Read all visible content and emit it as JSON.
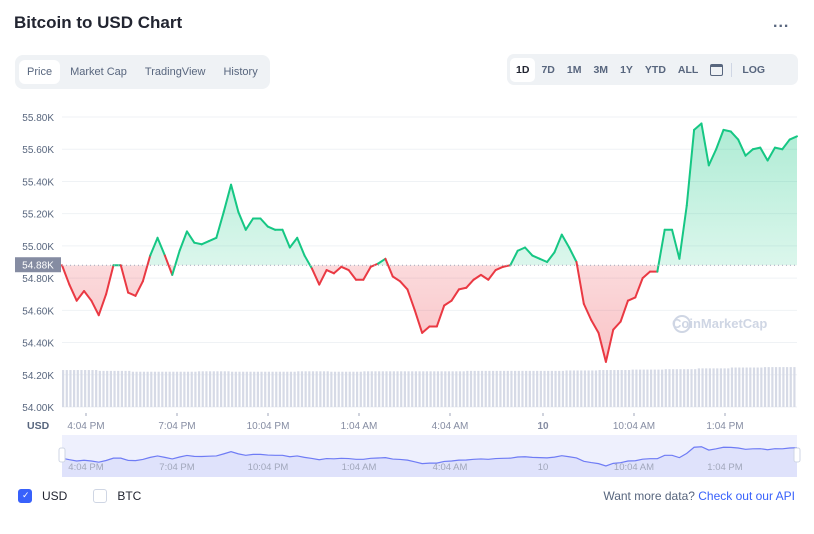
{
  "header": {
    "title": "Bitcoin to USD Chart",
    "more_label": "..."
  },
  "tabs": [
    {
      "label": "Price",
      "active": true
    },
    {
      "label": "Market Cap"
    },
    {
      "label": "TradingView"
    },
    {
      "label": "History"
    }
  ],
  "ranges": [
    {
      "label": "1D",
      "active": true
    },
    {
      "label": "7D"
    },
    {
      "label": "1M"
    },
    {
      "label": "3M"
    },
    {
      "label": "1Y"
    },
    {
      "label": "YTD"
    },
    {
      "label": "ALL"
    }
  ],
  "log_label": "LOG",
  "watermark": "CoinMarketCap",
  "colors": {
    "up": "#16c784",
    "down": "#ea3943",
    "navigator": "#6f7cf5",
    "accent": "#3861fb"
  },
  "chart_data": {
    "type": "line",
    "ylabel": "USD",
    "ylim": [
      54.0,
      55.85
    ],
    "y_ticks": [
      "54.00K",
      "54.20K",
      "54.40K",
      "54.60K",
      "54.80K",
      "55.00K",
      "55.20K",
      "55.40K",
      "55.60K",
      "55.80K"
    ],
    "x_ticks": [
      "4:04 PM",
      "7:04 PM",
      "10:04 PM",
      "1:04 AM",
      "4:04 AM",
      "10",
      "10:04 AM",
      "1:04 PM"
    ],
    "reference_price": 54.88,
    "reference_label": "54.88K",
    "grid": true,
    "prices": [
      54.88,
      54.76,
      54.66,
      54.72,
      54.66,
      54.57,
      54.7,
      54.88,
      54.88,
      54.71,
      54.69,
      54.78,
      54.94,
      55.05,
      54.94,
      54.82,
      54.97,
      55.09,
      55.02,
      55.01,
      55.03,
      55.05,
      55.21,
      55.38,
      55.21,
      55.1,
      55.17,
      55.17,
      55.12,
      55.1,
      55.1,
      54.99,
      55.05,
      54.94,
      54.86,
      54.76,
      54.85,
      54.83,
      54.87,
      54.85,
      54.79,
      54.79,
      54.87,
      54.89,
      54.92,
      54.81,
      54.78,
      54.73,
      54.6,
      54.46,
      54.5,
      54.5,
      54.63,
      54.66,
      54.73,
      54.74,
      54.79,
      54.82,
      54.79,
      54.85,
      54.87,
      54.88,
      54.97,
      54.99,
      54.94,
      54.92,
      54.9,
      54.96,
      55.07,
      54.99,
      54.9,
      54.64,
      54.54,
      54.46,
      54.28,
      54.48,
      54.53,
      54.66,
      54.68,
      54.8,
      54.84,
      54.84,
      55.1,
      55.1,
      54.92,
      55.25,
      55.72,
      55.76,
      55.5,
      55.6,
      55.72,
      55.71,
      55.66,
      55.56,
      55.6,
      55.61,
      55.53,
      55.61,
      55.6,
      55.66,
      55.68
    ],
    "volume_relative": [
      0.88,
      0.86,
      0.84,
      0.84,
      0.85,
      0.84,
      0.84,
      0.85,
      0.84,
      0.85,
      0.85,
      0.85,
      0.86,
      0.86,
      0.86,
      0.87,
      0.88,
      0.89,
      0.9,
      0.92,
      0.94,
      0.95
    ]
  },
  "footer": {
    "usd_label": "USD",
    "btc_label": "BTC",
    "api_prompt": "Want more data?",
    "api_link": "Check out our API"
  }
}
